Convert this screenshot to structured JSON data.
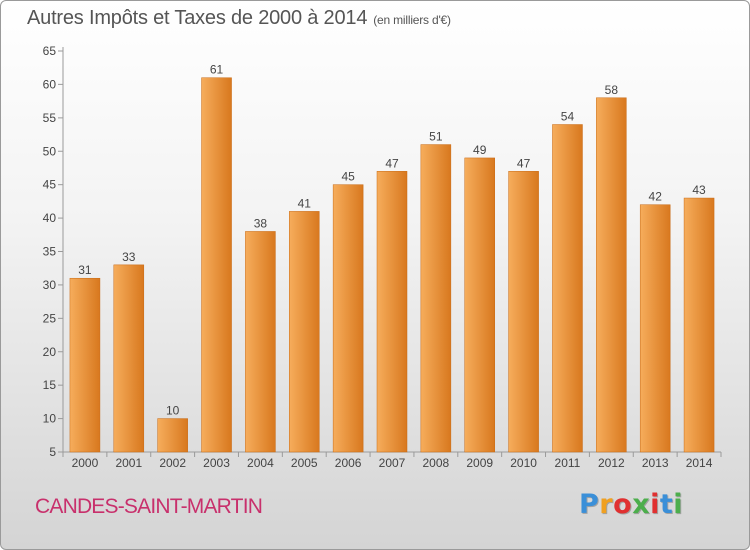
{
  "title": "Autres Impôts et Taxes de 2000 à 2014",
  "unit": "(en milliers d'€)",
  "place": "CANDES-SAINT-MARTIN",
  "logo": {
    "text": "Proxiti",
    "letter_colors": [
      "#3a8fd8",
      "#f0a020",
      "#e03030",
      "#4cae4c",
      "#e03030",
      "#3a8fd8",
      "#4cae4c"
    ]
  },
  "colors": {
    "bar_light": "#f6ad5c",
    "bar_dark": "#d8781e",
    "title": "#555555",
    "place": "#c8306c"
  },
  "chart_data": {
    "type": "bar",
    "categories": [
      "2000",
      "2001",
      "2002",
      "2003",
      "2004",
      "2005",
      "2006",
      "2007",
      "2008",
      "2009",
      "2010",
      "2011",
      "2012",
      "2013",
      "2014"
    ],
    "values": [
      31,
      33,
      10,
      61,
      38,
      41,
      45,
      47,
      51,
      49,
      47,
      54,
      58,
      42,
      43
    ],
    "data_labels": [
      "31",
      "33",
      "10",
      "61",
      "38",
      "41",
      "45",
      "47",
      "51",
      "49",
      "47",
      "54",
      "58",
      "42",
      "43"
    ],
    "ylim": [
      5,
      65
    ],
    "yticks": [
      "5",
      "10",
      "15",
      "20",
      "25",
      "30",
      "35",
      "40",
      "45",
      "50",
      "55",
      "60",
      "65"
    ],
    "grid": false,
    "xlabel": "",
    "ylabel": ""
  }
}
